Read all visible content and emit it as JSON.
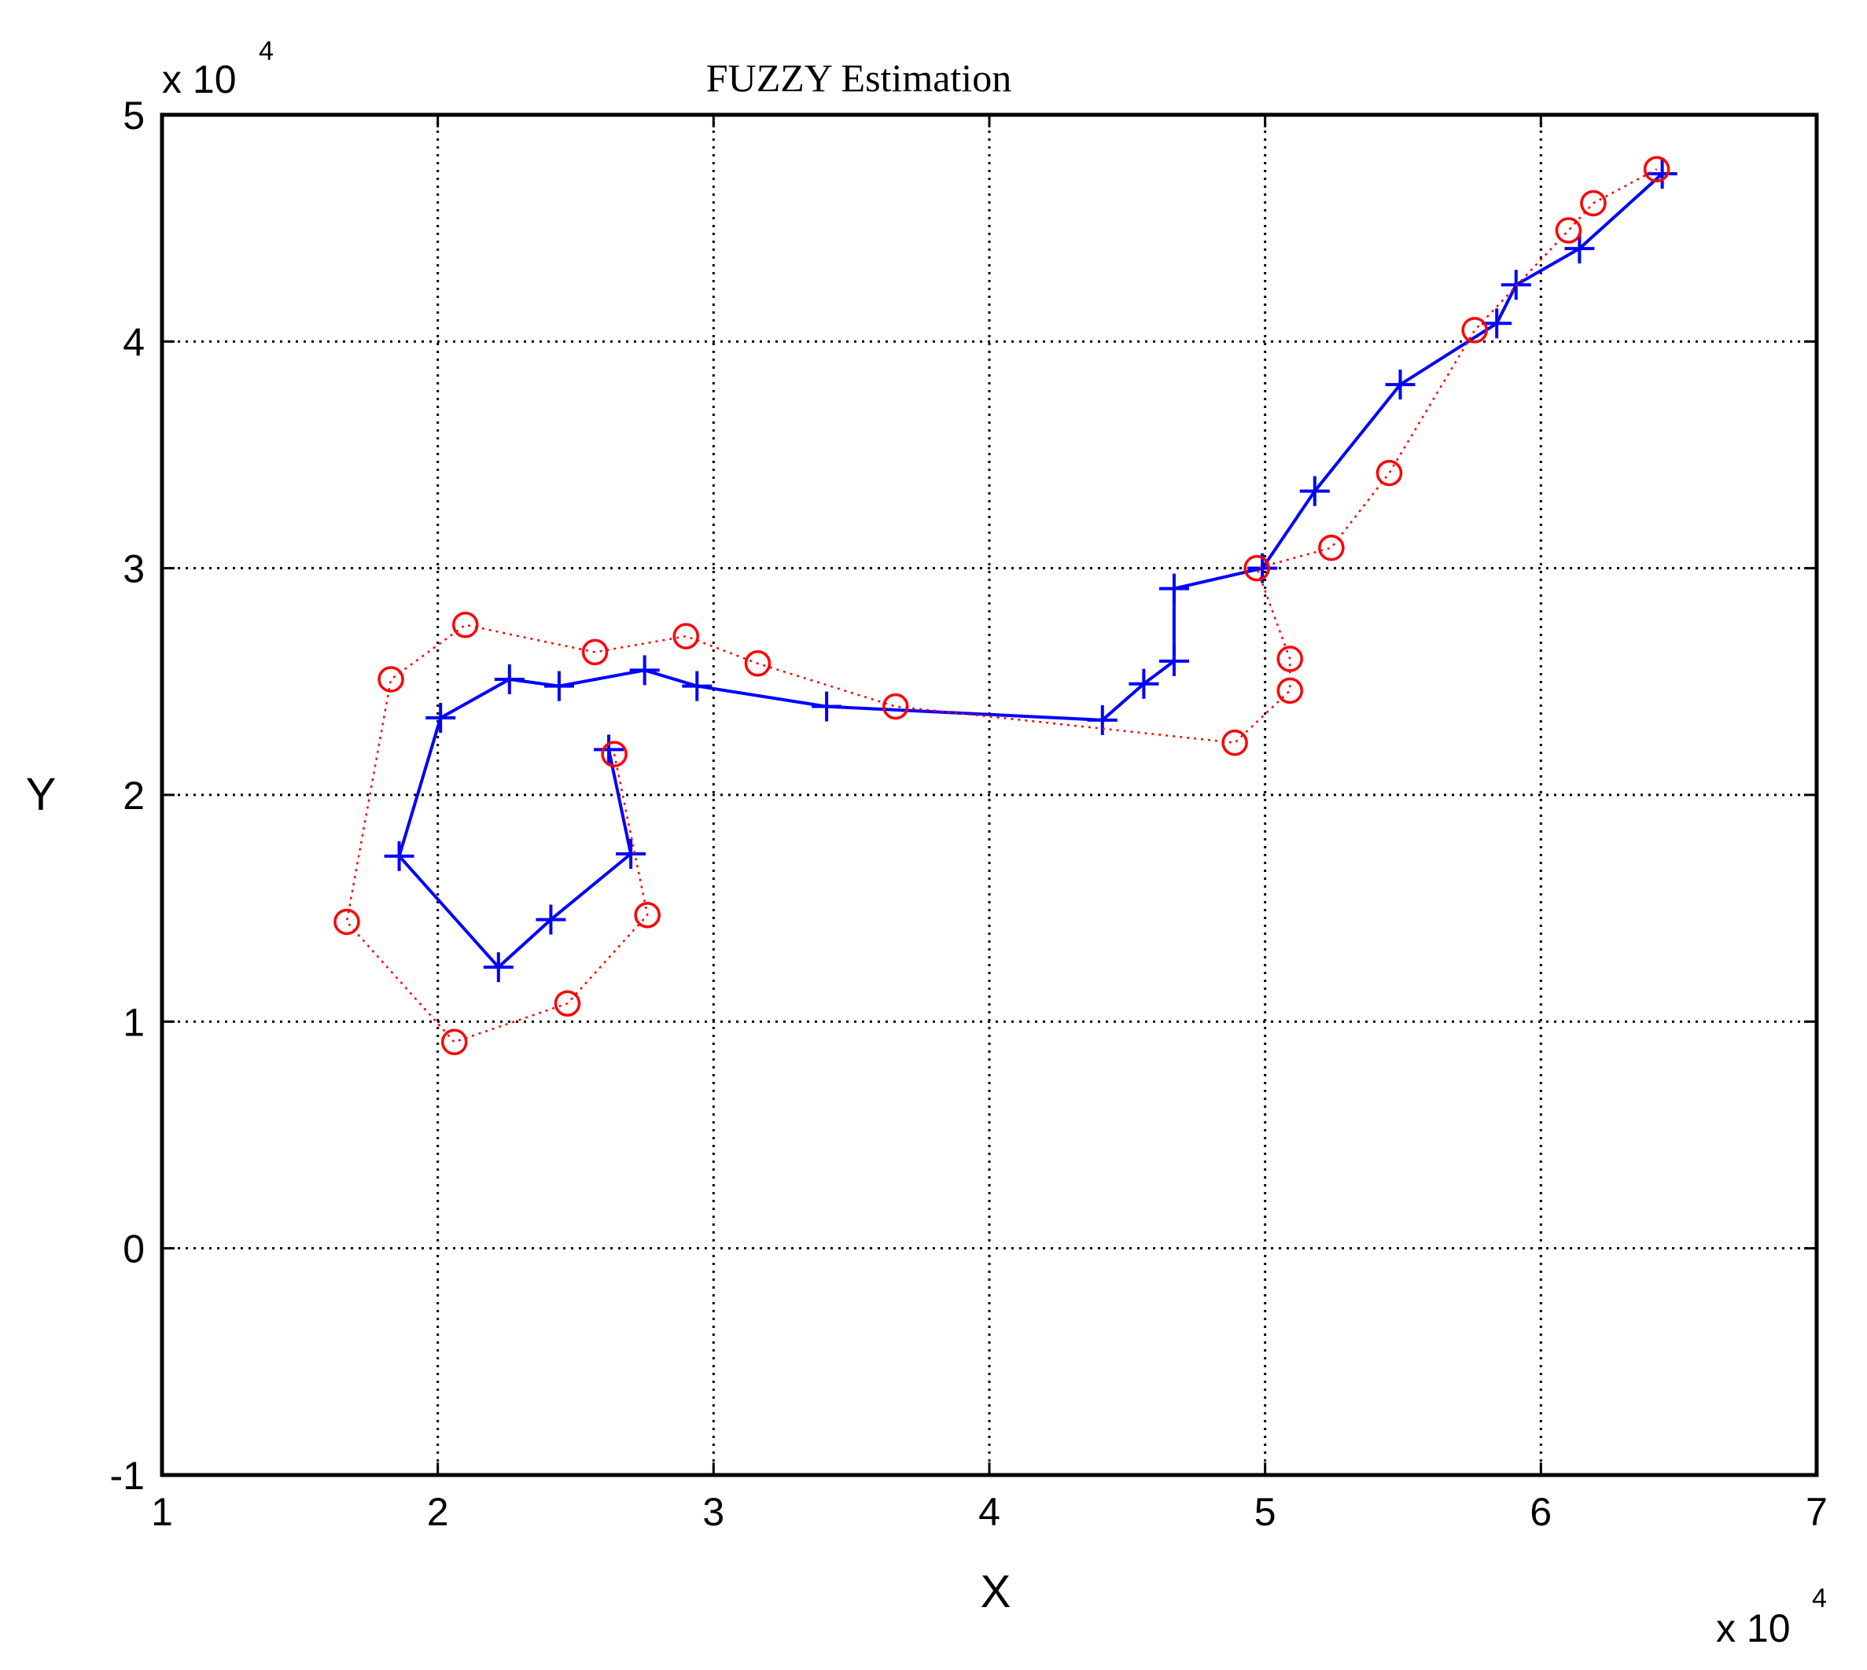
{
  "chart_data": {
    "type": "line",
    "title": "FUZZY Estimation",
    "xlabel": "X",
    "ylabel": "Y",
    "x_multiplier_label": {
      "base": "x 10",
      "exponent": "4"
    },
    "y_multiplier_label": {
      "base": "x 10",
      "exponent": "4"
    },
    "xlim": [
      10000,
      70000
    ],
    "ylim": [
      -10000,
      50000
    ],
    "x_ticks": [
      10000,
      20000,
      30000,
      40000,
      50000,
      60000,
      70000
    ],
    "y_ticks": [
      -10000,
      0,
      10000,
      20000,
      30000,
      40000,
      50000
    ],
    "x_tick_labels": [
      "1",
      "2",
      "3",
      "4",
      "5",
      "6",
      "7"
    ],
    "y_tick_labels": [
      "-1",
      "0",
      "1",
      "2",
      "3",
      "4",
      "5"
    ],
    "grid": true,
    "series": [
      {
        "color": "#0000ff",
        "marker": "plus",
        "line_style": "solid",
        "x": [
          26200,
          27000,
          24100,
          22200,
          18600,
          20100,
          22600,
          24400,
          27500,
          29400,
          34100,
          44100,
          45600,
          46700,
          46700,
          49900,
          51800,
          54900,
          58400,
          59100,
          61400,
          64400
        ],
        "y": [
          22000,
          17400,
          14500,
          12400,
          17300,
          23400,
          25100,
          24800,
          25500,
          24800,
          23900,
          23300,
          24900,
          25900,
          29100,
          30000,
          33400,
          38100,
          40800,
          42500,
          44100,
          47400
        ]
      },
      {
        "color": "#ff0000",
        "marker": "circle",
        "line_style": "dotted",
        "x": [
          26400,
          27600,
          24700,
          20600,
          16700,
          18300,
          21000,
          25700,
          29000,
          31600,
          36600,
          48900,
          50900,
          50900,
          49700,
          52400,
          54500,
          57600,
          61000,
          61900,
          64200
        ],
        "y": [
          21800,
          14700,
          10800,
          9100,
          14400,
          25100,
          27500,
          26300,
          27000,
          25800,
          23900,
          22300,
          24600,
          26000,
          30000,
          30900,
          34200,
          40500,
          44900,
          46100,
          47600
        ]
      }
    ]
  }
}
